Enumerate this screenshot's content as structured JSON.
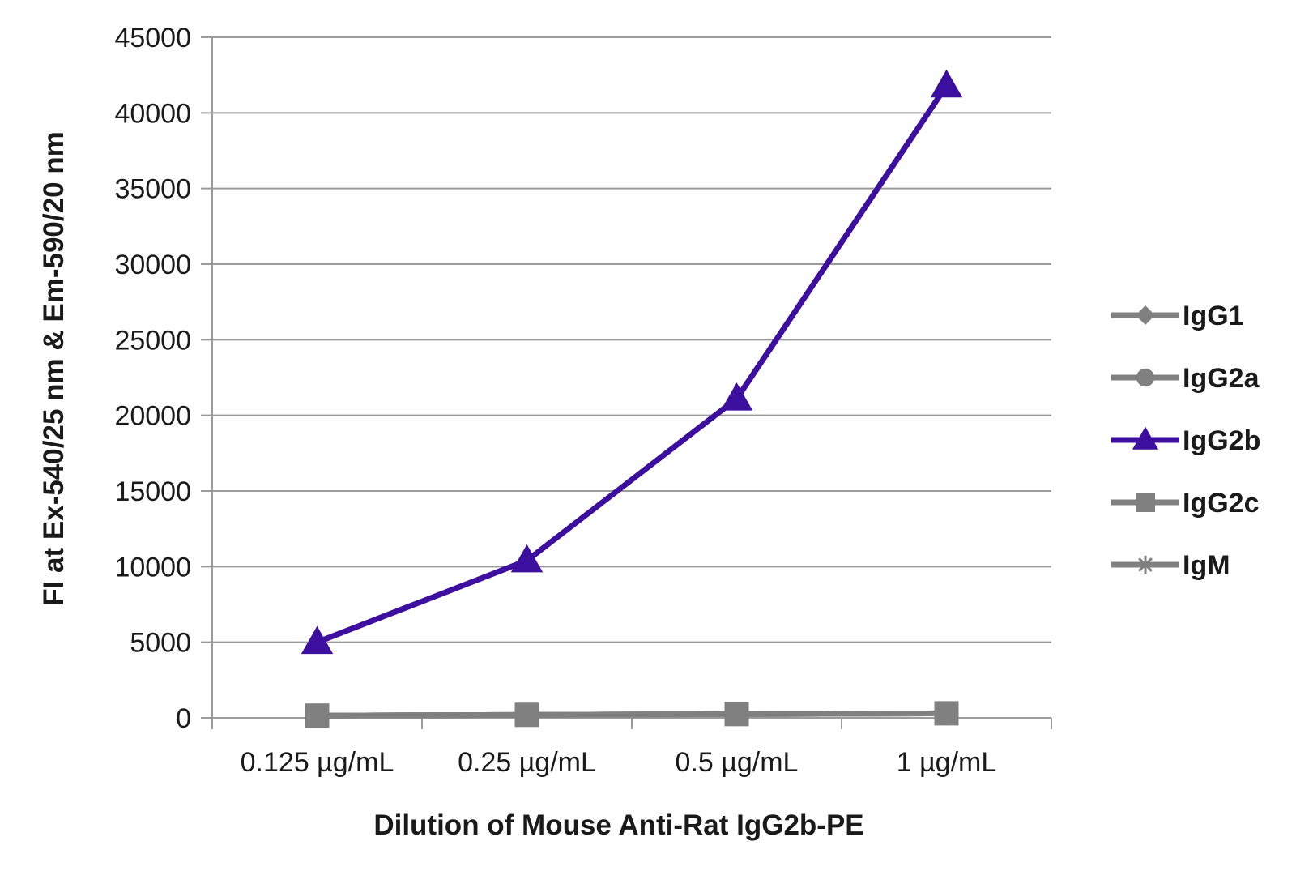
{
  "chart_data": {
    "type": "line",
    "xlabel": "Dilution of Mouse Anti-Rat IgG2b-PE",
    "ylabel": "FI at Ex-540/25 nm & Em-590/20 nm",
    "categories": [
      "0.125 µg/mL",
      "0.25 µg/mL",
      "0.5 µg/mL",
      "1 µg/mL"
    ],
    "ylim": [
      0,
      45000
    ],
    "yticks": [
      "0",
      "5000",
      "10000",
      "15000",
      "20000",
      "25000",
      "30000",
      "35000",
      "40000",
      "45000"
    ],
    "grid": true,
    "legend_position": "right",
    "series": [
      {
        "name": "IgG1",
        "marker": "diamond",
        "color": "#808080",
        "values": [
          150,
          200,
          250,
          300
        ]
      },
      {
        "name": "IgG2a",
        "marker": "circle",
        "color": "#808080",
        "values": [
          150,
          200,
          250,
          300
        ]
      },
      {
        "name": "IgG2b",
        "marker": "triangle",
        "color": "#3d0f9e",
        "values": [
          5000,
          10400,
          21100,
          41800
        ]
      },
      {
        "name": "IgG2c",
        "marker": "square",
        "color": "#808080",
        "values": [
          150,
          200,
          250,
          300
        ]
      },
      {
        "name": "IgM",
        "marker": "star",
        "color": "#808080",
        "values": [
          150,
          200,
          250,
          300
        ]
      }
    ]
  }
}
